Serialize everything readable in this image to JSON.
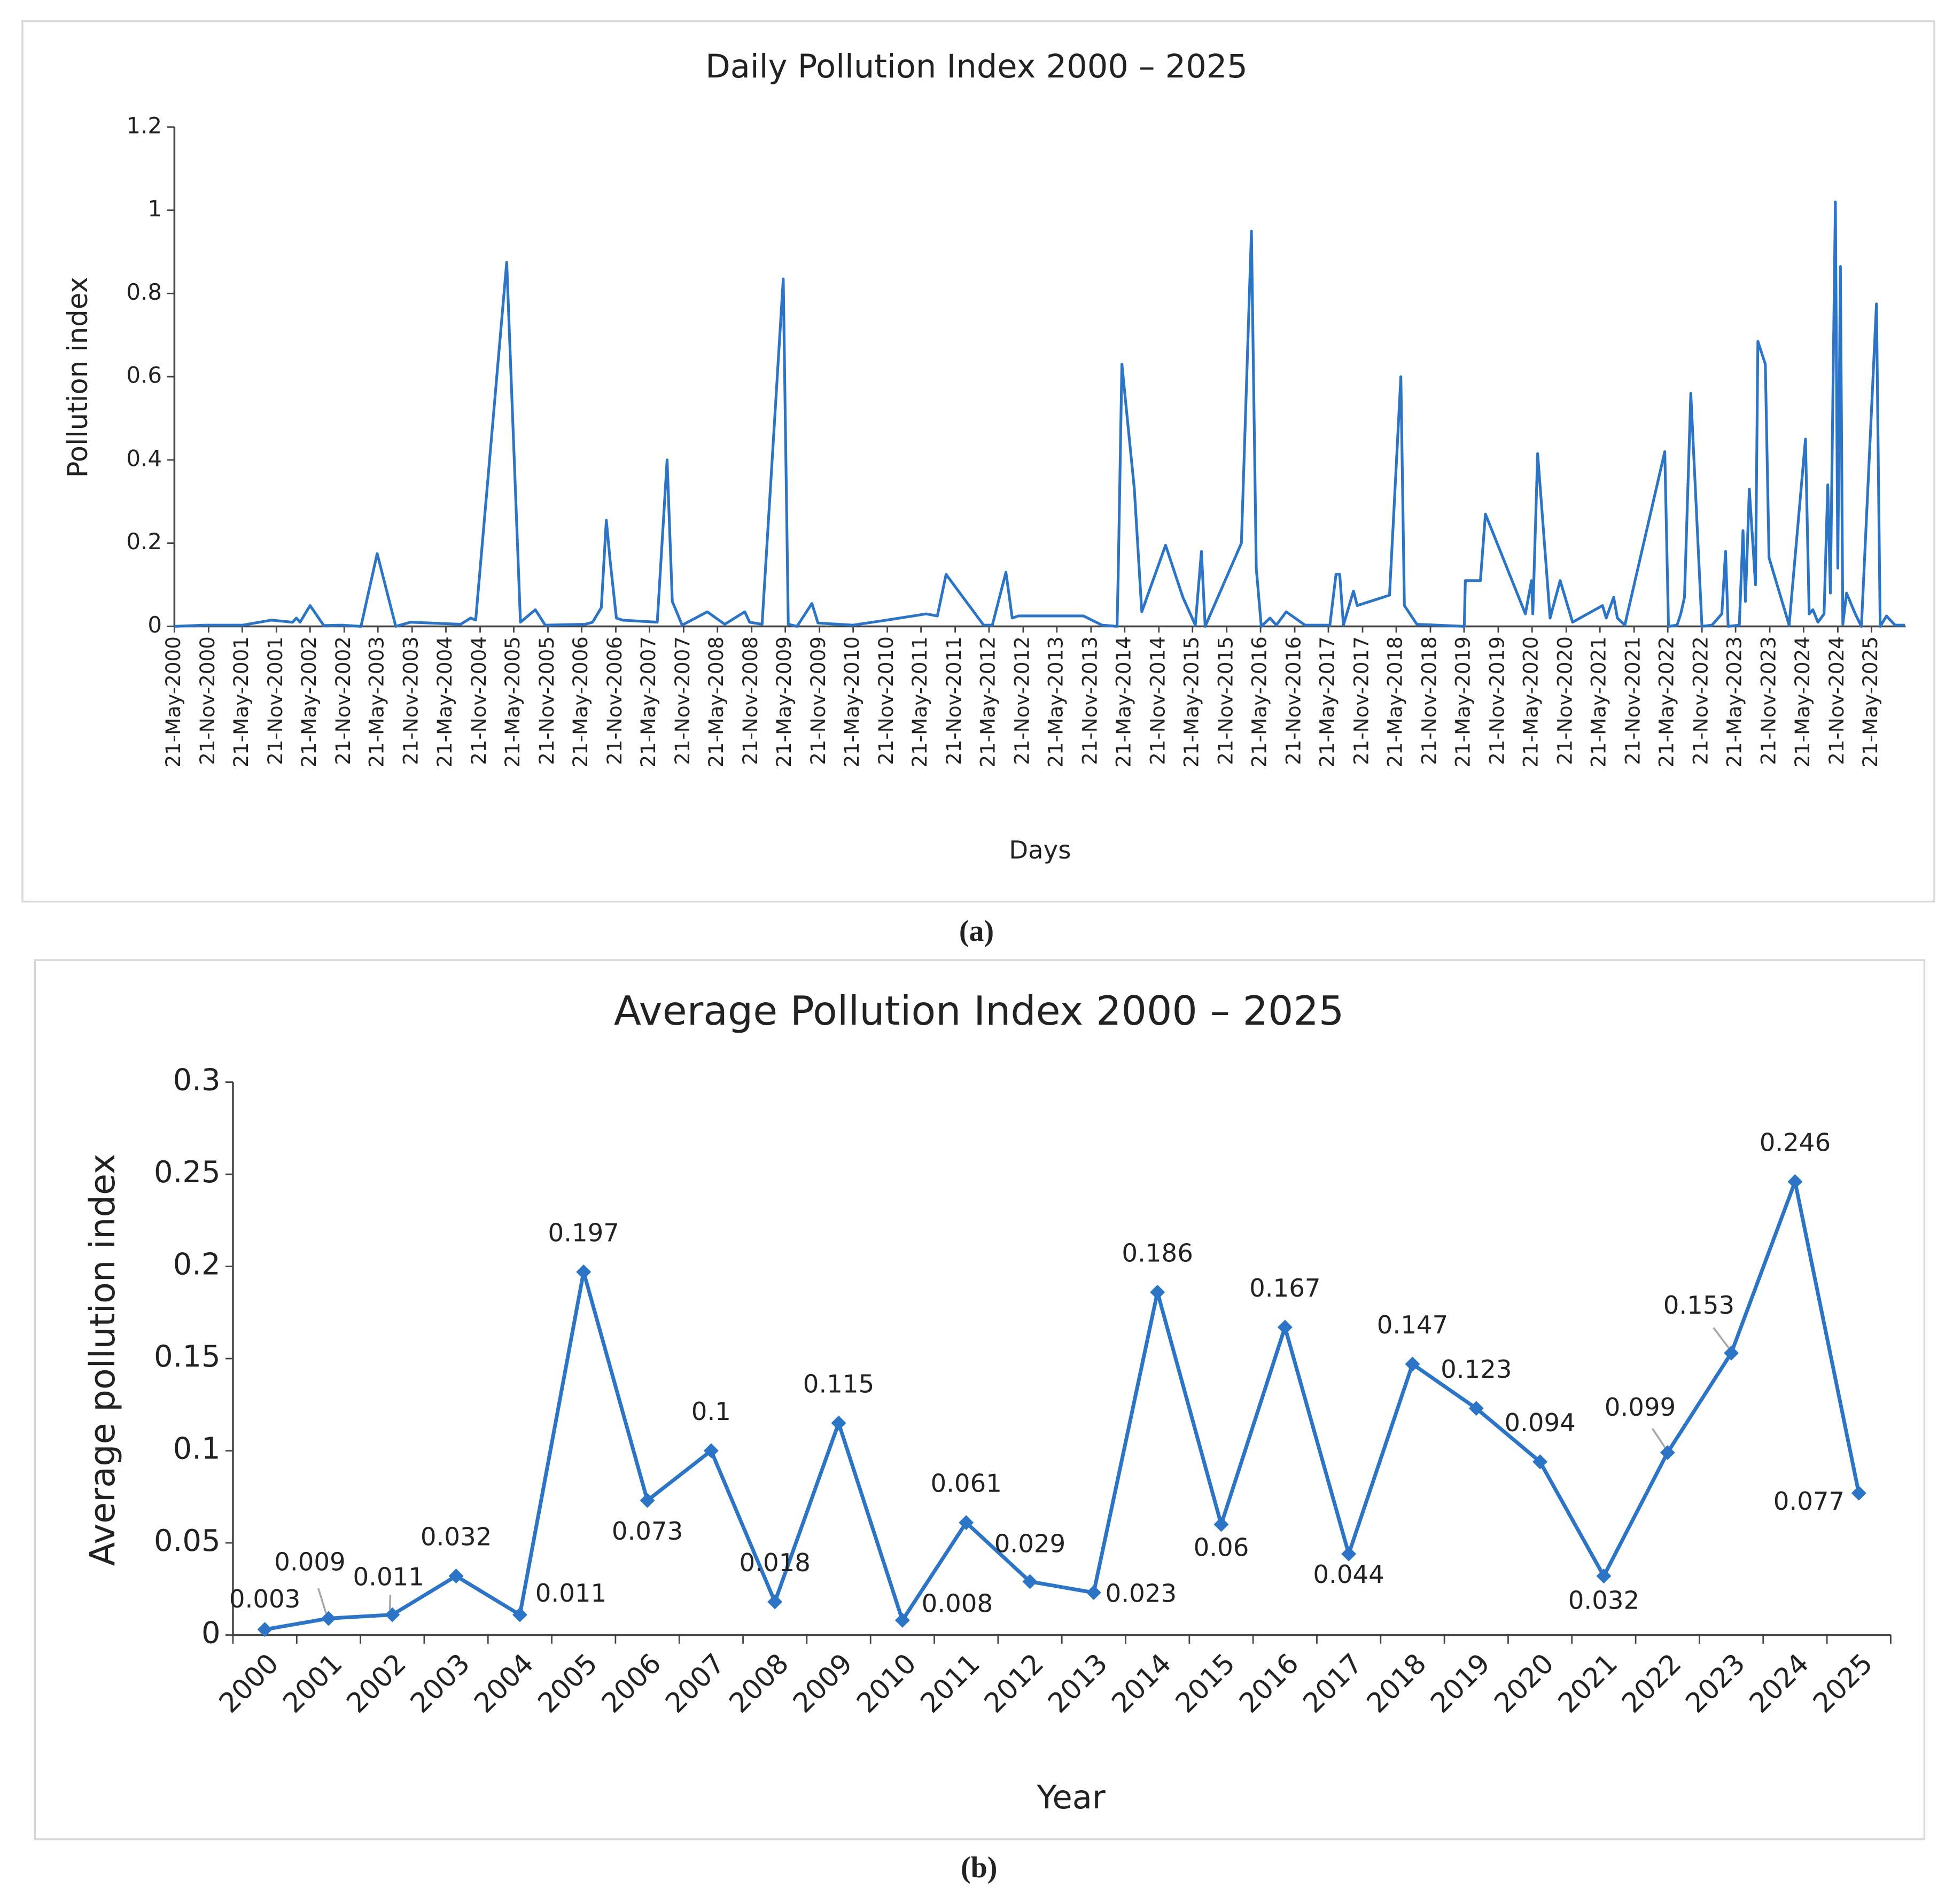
{
  "chart_data": [
    {
      "type": "line",
      "title": "Daily Pollution Index 2000 – 2025",
      "x_label": "Days",
      "y_label": "Pollution index",
      "caption": "(a)",
      "xlim": [
        "2000-05-21",
        "2025-11-21"
      ],
      "xticks": [
        {
          "value": "2000-05-21",
          "label": "21-May-2000"
        },
        {
          "value": "2000-11-21",
          "label": "21-Nov-2000"
        },
        {
          "value": "2001-05-21",
          "label": "21-May-2001"
        },
        {
          "value": "2001-11-21",
          "label": "21-Nov-2001"
        },
        {
          "value": "2002-05-21",
          "label": "21-May-2002"
        },
        {
          "value": "2002-11-21",
          "label": "21-Nov-2002"
        },
        {
          "value": "2003-05-21",
          "label": "21-May-2003"
        },
        {
          "value": "2003-11-21",
          "label": "21-Nov-2003"
        },
        {
          "value": "2004-05-21",
          "label": "21-May-2004"
        },
        {
          "value": "2004-11-21",
          "label": "21-Nov-2004"
        },
        {
          "value": "2005-05-21",
          "label": "21-May-2005"
        },
        {
          "value": "2005-11-21",
          "label": "21-Nov-2005"
        },
        {
          "value": "2006-05-21",
          "label": "21-May-2006"
        },
        {
          "value": "2006-11-21",
          "label": "21-Nov-2006"
        },
        {
          "value": "2007-05-21",
          "label": "21-May-2007"
        },
        {
          "value": "2007-11-21",
          "label": "21-Nov-2007"
        },
        {
          "value": "2008-05-21",
          "label": "21-May-2008"
        },
        {
          "value": "2008-11-21",
          "label": "21-Nov-2008"
        },
        {
          "value": "2009-05-21",
          "label": "21-May-2009"
        },
        {
          "value": "2009-11-21",
          "label": "21-Nov-2009"
        },
        {
          "value": "2010-05-21",
          "label": "21-May-2010"
        },
        {
          "value": "2010-11-21",
          "label": "21-Nov-2010"
        },
        {
          "value": "2011-05-21",
          "label": "21-May-2011"
        },
        {
          "value": "2011-11-21",
          "label": "21-Nov-2011"
        },
        {
          "value": "2012-05-21",
          "label": "21-May-2012"
        },
        {
          "value": "2012-11-21",
          "label": "21-Nov-2012"
        },
        {
          "value": "2013-05-21",
          "label": "21-May-2013"
        },
        {
          "value": "2013-11-21",
          "label": "21-Nov-2013"
        },
        {
          "value": "2014-05-21",
          "label": "21-May-2014"
        },
        {
          "value": "2014-11-21",
          "label": "21-Nov-2014"
        },
        {
          "value": "2015-05-21",
          "label": "21-May-2015"
        },
        {
          "value": "2015-11-21",
          "label": "21-Nov-2015"
        },
        {
          "value": "2016-05-21",
          "label": "21-May-2016"
        },
        {
          "value": "2016-11-21",
          "label": "21-Nov-2016"
        },
        {
          "value": "2017-05-21",
          "label": "21-May-2017"
        },
        {
          "value": "2017-11-21",
          "label": "21-Nov-2017"
        },
        {
          "value": "2018-05-21",
          "label": "21-May-2018"
        },
        {
          "value": "2018-11-21",
          "label": "21-Nov-2018"
        },
        {
          "value": "2019-05-21",
          "label": "21-May-2019"
        },
        {
          "value": "2019-11-21",
          "label": "21-Nov-2019"
        },
        {
          "value": "2020-05-21",
          "label": "21-May-2020"
        },
        {
          "value": "2020-11-21",
          "label": "21-Nov-2020"
        },
        {
          "value": "2021-05-21",
          "label": "21-May-2021"
        },
        {
          "value": "2021-11-21",
          "label": "21-Nov-2021"
        },
        {
          "value": "2022-05-21",
          "label": "21-May-2022"
        },
        {
          "value": "2022-11-21",
          "label": "21-Nov-2022"
        },
        {
          "value": "2023-05-21",
          "label": "21-May-2023"
        },
        {
          "value": "2023-11-21",
          "label": "21-Nov-2023"
        },
        {
          "value": "2024-05-21",
          "label": "21-May-2024"
        },
        {
          "value": "2024-11-21",
          "label": "21-Nov-2024"
        },
        {
          "value": "2025-05-21",
          "label": "21-May-2025"
        }
      ],
      "ylim": [
        0,
        1.2
      ],
      "yticks": [
        0,
        0.2,
        0.4,
        0.6,
        0.8,
        1,
        1.2
      ],
      "color": "#2b74c6",
      "x": [
        "2000-05-21",
        "2000-11-04",
        "2001-05-24",
        "2001-10-25",
        "2002-02-16",
        "2002-03-08",
        "2002-03-28",
        "2002-05-21",
        "2002-08-03",
        "2002-11-11",
        "2003-02-19",
        "2003-05-17",
        "2003-08-25",
        "2003-11-13",
        "2004-08-08",
        "2004-10-01",
        "2004-10-28",
        "2005-04-13",
        "2005-06-26",
        "2005-09-14",
        "2005-11-06",
        "2006-06-09",
        "2006-07-19",
        "2006-09-04",
        "2006-10-01",
        "2006-10-21",
        "2006-11-24",
        "2006-12-27",
        "2007-07-02",
        "2007-08-24",
        "2007-09-21",
        "2007-11-13",
        "2008-03-27",
        "2008-06-29",
        "2008-10-15",
        "2008-11-10",
        "2009-01-16",
        "2009-05-10",
        "2009-06-06",
        "2009-07-23",
        "2009-10-11",
        "2009-11-13",
        "2010-05-20",
        "2010-11-16",
        "2011-06-18",
        "2011-08-17",
        "2011-10-03",
        "2012-04-22",
        "2012-06-08",
        "2012-08-20",
        "2012-09-23",
        "2012-10-26",
        "2013-10-11",
        "2014-01-19",
        "2014-04-10",
        "2014-04-16",
        "2014-05-06",
        "2014-07-12",
        "2014-08-21",
        "2014-12-27",
        "2015-03-30",
        "2015-06-05",
        "2015-07-08",
        "2015-07-28",
        "2016-02-08",
        "2016-04-02",
        "2016-04-28",
        "2016-05-25",
        "2016-07-11",
        "2016-08-14",
        "2016-10-06",
        "2017-01-15",
        "2017-05-29",
        "2017-07-01",
        "2017-07-21",
        "2017-08-10",
        "2017-10-03",
        "2017-10-23",
        "2018-04-15",
        "2018-06-15",
        "2018-07-04",
        "2018-09-09",
        "2019-05-22",
        "2019-05-28",
        "2019-08-17",
        "2019-09-13",
        "2020-04-15",
        "2020-05-18",
        "2020-05-25",
        "2020-06-20",
        "2020-08-26",
        "2020-10-19",
        "2020-12-25",
        "2021-06-04",
        "2021-06-24",
        "2021-08-03",
        "2021-08-23",
        "2021-10-02",
        "2022-05-05",
        "2022-05-25",
        "2022-07-10",
        "2022-07-30",
        "2022-08-19",
        "2022-09-22",
        "2022-11-21",
        "2023-01-14",
        "2023-03-08",
        "2023-03-28",
        "2023-04-11",
        "2023-06-10",
        "2023-06-30",
        "2023-07-13",
        "2023-08-03",
        "2023-09-05",
        "2023-09-18",
        "2023-10-28",
        "2023-11-17",
        "2024-03-04",
        "2024-05-31",
        "2024-06-20",
        "2024-07-10",
        "2024-08-06",
        "2024-09-08",
        "2024-09-28",
        "2024-10-12",
        "2024-11-08",
        "2024-11-21",
        "2024-12-05",
        "2024-12-18",
        "2025-01-07",
        "2025-02-23",
        "2025-03-28",
        "2025-06-17",
        "2025-07-07",
        "2025-08-10",
        "2025-09-25",
        "2025-11-17"
      ],
      "values": [
        0,
        0.003,
        0.003,
        0.015,
        0.01,
        0.02,
        0.01,
        0.05,
        0.002,
        0.003,
        0,
        0.175,
        0,
        0.01,
        0.005,
        0.02,
        0.015,
        0.875,
        0.01,
        0.04,
        0.003,
        0.005,
        0.01,
        0.045,
        0.255,
        0.16,
        0.02,
        0.015,
        0.01,
        0.4,
        0.06,
        0.003,
        0.035,
        0.005,
        0.035,
        0.01,
        0.005,
        0.835,
        0.005,
        0,
        0.055,
        0.008,
        0.003,
        0.015,
        0.03,
        0.025,
        0.125,
        0.003,
        0.003,
        0.13,
        0.02,
        0.025,
        0.025,
        0.003,
        0,
        0.12,
        0.63,
        0.33,
        0.035,
        0.195,
        0.07,
        0.003,
        0.18,
        0,
        0.2,
        0.95,
        0.14,
        0,
        0.02,
        0.003,
        0.035,
        0.003,
        0.003,
        0.125,
        0.125,
        0.003,
        0.085,
        0.05,
        0.075,
        0.6,
        0.05,
        0.005,
        0,
        0.11,
        0.11,
        0.27,
        0.03,
        0.11,
        0.03,
        0.415,
        0.02,
        0.11,
        0.01,
        0.05,
        0.02,
        0.07,
        0.02,
        0.003,
        0.42,
        0,
        0.003,
        0.03,
        0.07,
        0.56,
        0,
        0.003,
        0.03,
        0.18,
        0,
        0.003,
        0.23,
        0.06,
        0.33,
        0.1,
        0.685,
        0.63,
        0.165,
        0.003,
        0.45,
        0.03,
        0.04,
        0.01,
        0.03,
        0.34,
        0.08,
        1.02,
        0.14,
        0.865,
        0.005,
        0.08,
        0.03,
        0,
        0.775,
        0,
        0.025,
        0.003,
        0.003
      ]
    },
    {
      "type": "line-markers",
      "title": "Average Pollution Index 2000 – 2025",
      "x_label": "Year",
      "y_label": "Average pollution index",
      "caption": "(b)",
      "categories": [
        "2000",
        "2001",
        "2002",
        "2003",
        "2004",
        "2005",
        "2006",
        "2007",
        "2008",
        "2009",
        "2010",
        "2011",
        "2012",
        "2013",
        "2014",
        "2015",
        "2016",
        "2017",
        "2018",
        "2019",
        "2020",
        "2021",
        "2022",
        "2023",
        "2024",
        "2025"
      ],
      "values": [
        0.003,
        0.009,
        0.011,
        0.032,
        0.011,
        0.197,
        0.073,
        0.1,
        0.018,
        0.115,
        0.008,
        0.061,
        0.029,
        0.023,
        0.186,
        0.06,
        0.167,
        0.044,
        0.147,
        0.123,
        0.094,
        0.032,
        0.099,
        0.153,
        0.246,
        0.077
      ],
      "ylim": [
        0,
        0.3
      ],
      "yticks": [
        0,
        0.05,
        0.1,
        0.15,
        0.2,
        0.25,
        0.3
      ],
      "color": "#2b74c6"
    }
  ]
}
